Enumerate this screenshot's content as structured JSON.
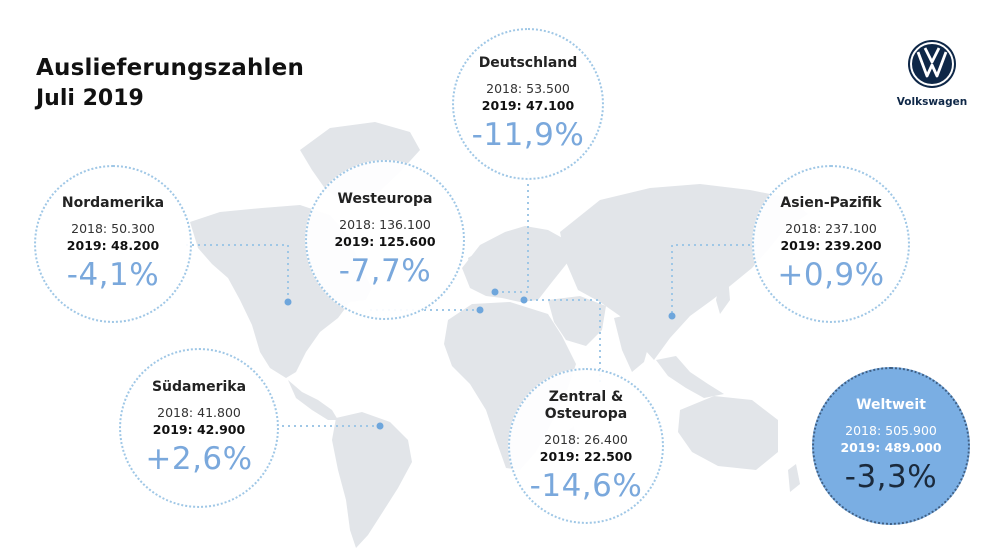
{
  "header": {
    "title": "Auslieferungszahlen",
    "subtitle": "Juli 2019"
  },
  "brand": {
    "name": "Volkswagen",
    "logo_icon": "vw-logo-icon",
    "color": "#0e2747"
  },
  "colors": {
    "accent": "#7aa8dc",
    "world_bubble": "#7aaee3",
    "dotted_line": "#9fc7e6",
    "map": "#e2e5e9"
  },
  "regions": {
    "deutschland": {
      "name": "Deutschland",
      "y2018": "2018: 53.500",
      "y2019": "2019: 47.100",
      "change": "-11,9%"
    },
    "westeuropa": {
      "name": "Westeuropa",
      "y2018": "2018: 136.100",
      "y2019": "2019: 125.600",
      "change": "-7,7%"
    },
    "nordamerika": {
      "name": "Nordamerika",
      "y2018": "2018: 50.300",
      "y2019": "2019: 48.200",
      "change": "-4,1%"
    },
    "asien": {
      "name": "Asien-Pazifik",
      "y2018": "2018: 237.100",
      "y2019": "2019: 239.200",
      "change": "+0,9%"
    },
    "suedamerika": {
      "name": "Südamerika",
      "y2018": "2018: 41.800",
      "y2019": "2019: 42.900",
      "change": "+2,6%"
    },
    "zentral": {
      "name_line1": "Zentral &",
      "name_line2": "Osteuropa",
      "y2018": "2018: 26.400",
      "y2019": "2019: 22.500",
      "change": "-14,6%"
    },
    "weltweit": {
      "name": "Weltweit",
      "y2018": "2018: 505.900",
      "y2019": "2019: 489.000",
      "change": "-3,3%"
    }
  }
}
